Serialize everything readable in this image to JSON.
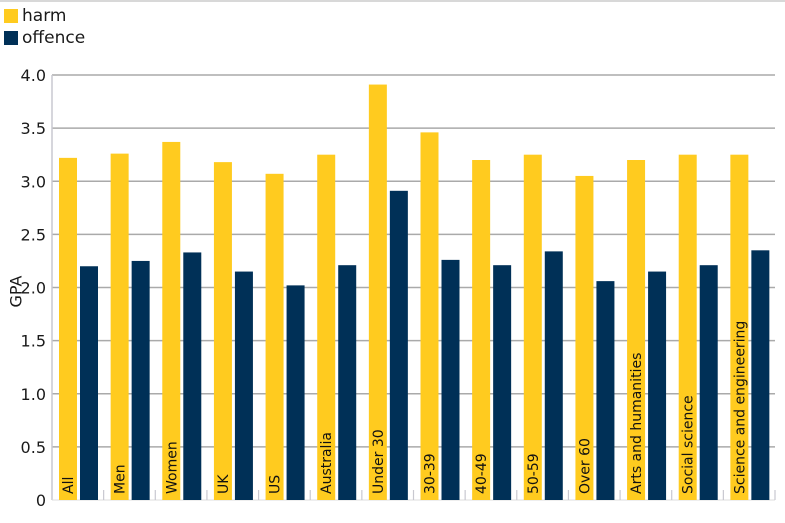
{
  "chart_data": {
    "type": "bar",
    "title": "",
    "xlabel": "",
    "ylabel": "GPA",
    "ylim": [
      0,
      4.0
    ],
    "yticks": [
      "0",
      "0.5",
      "1.0",
      "1.5",
      "2.0",
      "2.5",
      "3.0",
      "3.5",
      "4.0"
    ],
    "grid": true,
    "legend_position": "top-left",
    "categories": [
      "All",
      "Men",
      "Women",
      "UK",
      "US",
      "Australia",
      "Under 30",
      "30-39",
      "40-49",
      "50-59",
      "Over 60",
      "Arts and humanities",
      "Social science",
      "Science and engineering"
    ],
    "series": [
      {
        "name": "harm",
        "color": "#FFCB1F",
        "values": [
          3.22,
          3.26,
          3.37,
          3.18,
          3.07,
          3.25,
          3.91,
          3.46,
          3.2,
          3.25,
          3.05,
          3.2,
          3.25,
          3.25
        ]
      },
      {
        "name": "offence",
        "color": "#003057",
        "values": [
          2.2,
          2.25,
          2.33,
          2.15,
          2.02,
          2.21,
          2.91,
          2.26,
          2.21,
          2.34,
          2.06,
          2.15,
          2.21,
          2.35
        ]
      }
    ]
  },
  "legend": {
    "items": [
      {
        "label": "harm",
        "color": "#FFCB1F"
      },
      {
        "label": "offence",
        "color": "#003057"
      }
    ]
  },
  "axis": {
    "ylabel": "GPA"
  },
  "colors": {
    "grid": "#aaaaaa",
    "axis": "#c8c8d0"
  }
}
